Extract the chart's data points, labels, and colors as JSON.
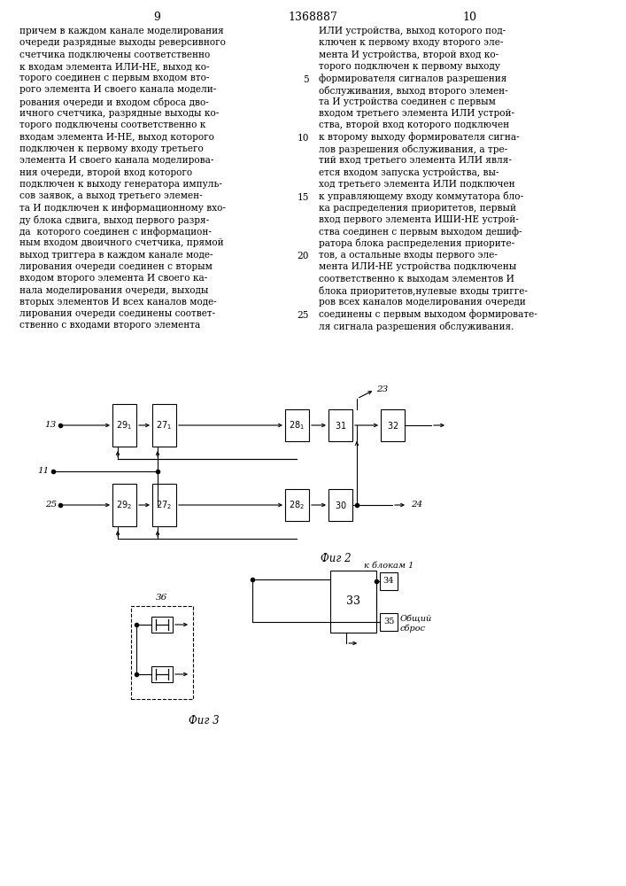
{
  "page_num_left": "9",
  "patent_number": "1368887",
  "page_num_right": "10",
  "left_text": [
    "причем в каждом канале моделирования",
    "очереди разрядные выходы реверсивного",
    "счетчика подключены соответственно",
    "к входам элемента ИЛИ-НЕ, выход ко-",
    "торого соединен с первым входом вто-",
    "рого элемента И своего канала модели-",
    "рования очереди и входом сброса дво-",
    "ичного счетчика, разрядные выходы ко-",
    "торого подключены соответственно к",
    "входам элемента И-НЕ, выход которого",
    "подключен к первому входу третьего",
    "элемента И своего канала моделирова-",
    "ния очереди, второй вход которого",
    "подключен к выходу генератора импуль-",
    "сов заявок, а выход третьего элемен-",
    "та И подключен к информационному вхо-",
    "ду блока сдвига, выход первого разря-",
    "да  которого соединен с информацион-",
    "ным входом двоичного счетчика, прямой",
    "выход триггера в каждом канале моде-",
    "лирования очереди соединен с вторым",
    "входом второго элемента И своего ка-",
    "нала моделирования очереди, выходы",
    "вторых элементов И всех каналов моде-",
    "лирования очереди соединены соответ-",
    "ственно с входами второго элемента"
  ],
  "right_text": [
    "ИЛИ устройства, выход которого под-",
    "ключен к первому входу второго эле-",
    "мента И устройства, второй вход ко-",
    "торого подключен к первому выходу",
    "формирователя сигналов разрешения",
    "обслуживания, выход второго элемен-",
    "та И устройства соединен с первым",
    "входом третьего элемента ИЛИ устрой-",
    "ства, второй вход которого подключен",
    "к второму выходу формирователя сигна-",
    "лов разрешения обслуживания, а тре-",
    "тий вход третьего элемента ИЛИ явля-",
    "ется входом запуска устройства, вы-",
    "ход третьего элемента ИЛИ подключен",
    "к управляющему входу коммутатора бло-",
    "ка распределения приоритетов, первый",
    "вход первого элемента ИШИ-НЕ устрой-",
    "ства соединен с первым выходом дешиф-",
    "ратора блока распределения приорите-",
    "тов, а остальные входы первого эле-",
    "мента ИЛИ-НЕ устройства подключены",
    "соответственно к выходам элементов И",
    "блока приоритетов,нулевые входы тригге-",
    "ров всех каналов моделирования очереди",
    "соединены с первым выходом формировате-",
    "ля сигнала разрешения обслуживания."
  ],
  "line_numbers_at_rows": [
    4,
    9,
    14,
    19,
    24
  ],
  "line_number_values": [
    "5",
    "10",
    "15",
    "20",
    "25"
  ],
  "fig2_label": "Фиг 2",
  "fig3_label": "Фиг 3",
  "k_blokam": "к блокам 1",
  "obshiy_sbros_line1": "Общий",
  "obshiy_sbros_line2": "сброс",
  "label_13": "13",
  "label_11": "11",
  "label_25": "25",
  "label_23": "23",
  "label_24": "24",
  "label_36": "36",
  "label_33": "33",
  "label_34": "34",
  "label_35": "35"
}
